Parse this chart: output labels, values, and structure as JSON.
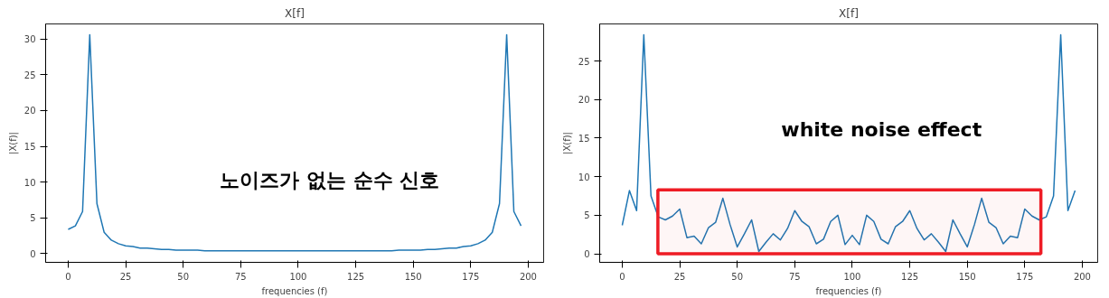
{
  "chart_data": [
    {
      "type": "line",
      "title": "X[f]",
      "xlabel": "frequencies (f)",
      "ylabel": "|X(f)|",
      "x": [
        0,
        3.125,
        6.25,
        9.375,
        12.5,
        15.625,
        18.75,
        21.875,
        25,
        28.125,
        31.25,
        34.375,
        37.5,
        40.625,
        43.75,
        46.875,
        50,
        53.125,
        56.25,
        59.375,
        62.5,
        65.625,
        68.75,
        71.875,
        75,
        78.125,
        81.25,
        84.375,
        87.5,
        90.625,
        93.75,
        96.875,
        100,
        103.125,
        106.25,
        109.375,
        112.5,
        115.625,
        118.75,
        121.875,
        125,
        128.125,
        131.25,
        134.375,
        137.5,
        140.625,
        143.75,
        146.875,
        150,
        153.125,
        156.25,
        159.375,
        162.5,
        165.625,
        168.75,
        171.875,
        175,
        178.125,
        181.25,
        184.375,
        187.5,
        190.625,
        193.75,
        196.875
      ],
      "series": [
        {
          "color": "#1f77b4",
          "values": [
            3.4,
            3.9,
            5.9,
            30.6,
            7.0,
            3.0,
            1.9,
            1.4,
            1.1,
            1.0,
            0.8,
            0.8,
            0.7,
            0.6,
            0.6,
            0.5,
            0.5,
            0.5,
            0.5,
            0.4,
            0.4,
            0.4,
            0.4,
            0.4,
            0.4,
            0.4,
            0.4,
            0.4,
            0.4,
            0.4,
            0.4,
            0.4,
            0.4,
            0.4,
            0.4,
            0.4,
            0.4,
            0.4,
            0.4,
            0.4,
            0.4,
            0.4,
            0.4,
            0.4,
            0.4,
            0.4,
            0.5,
            0.5,
            0.5,
            0.5,
            0.6,
            0.6,
            0.7,
            0.8,
            0.8,
            1.0,
            1.1,
            1.4,
            1.9,
            3.0,
            7.0,
            30.6,
            5.9,
            3.9
          ]
        }
      ],
      "xlim": [
        -9.8,
        206.7
      ],
      "xticks": [
        0,
        25,
        50,
        75,
        100,
        125,
        150,
        175,
        200
      ],
      "ylim": [
        -1.2,
        32.1
      ],
      "yticks": [
        0,
        5,
        10,
        15,
        20,
        25,
        30
      ],
      "annotations": [
        "노이즈가 없는 순수 신호"
      ]
    },
    {
      "type": "line",
      "title": "X[f]",
      "xlabel": "frequencies (f)",
      "ylabel": "|X(f)|",
      "x": [
        0,
        3.125,
        6.25,
        9.375,
        12.5,
        15.625,
        18.75,
        21.875,
        25,
        28.125,
        31.25,
        34.375,
        37.5,
        40.625,
        43.75,
        46.875,
        50,
        53.125,
        56.25,
        59.375,
        62.5,
        65.625,
        68.75,
        71.875,
        75,
        78.125,
        81.25,
        84.375,
        87.5,
        90.625,
        93.75,
        96.875,
        100,
        103.125,
        106.25,
        109.375,
        112.5,
        115.625,
        118.75,
        121.875,
        125,
        128.125,
        131.25,
        134.375,
        137.5,
        140.625,
        143.75,
        146.875,
        150,
        153.125,
        156.25,
        159.375,
        162.5,
        165.625,
        168.75,
        171.875,
        175,
        178.125,
        181.25,
        184.375,
        187.5,
        190.625,
        193.75,
        196.875
      ],
      "series": [
        {
          "color": "#1f77b4",
          "values": [
            3.7,
            8.2,
            5.6,
            28.4,
            7.5,
            4.8,
            4.4,
            4.9,
            5.8,
            2.1,
            2.3,
            1.3,
            3.4,
            4.1,
            7.2,
            3.8,
            0.9,
            2.6,
            4.4,
            0.3,
            1.5,
            2.6,
            1.8,
            3.3,
            5.6,
            4.2,
            3.5,
            1.3,
            1.9,
            4.2,
            5.0,
            1.2,
            2.4,
            1.2,
            5.0,
            4.2,
            1.9,
            1.3,
            3.5,
            4.2,
            5.6,
            3.3,
            1.8,
            2.6,
            1.5,
            0.3,
            4.4,
            2.6,
            0.9,
            3.8,
            7.2,
            4.1,
            3.4,
            1.3,
            2.3,
            2.1,
            5.8,
            4.9,
            4.4,
            4.8,
            7.5,
            28.4,
            5.6,
            8.2
          ]
        }
      ],
      "xlim": [
        -9.8,
        206.7
      ],
      "xticks": [
        0,
        25,
        50,
        75,
        100,
        125,
        150,
        175,
        200
      ],
      "ylim": [
        -1.1,
        29.8
      ],
      "yticks": [
        0,
        5,
        10,
        15,
        20,
        25
      ],
      "bands": [
        {
          "axis": "x",
          "from": 15.5,
          "to": 182,
          "color": "#ee1c25"
        }
      ],
      "annotations": [
        "white noise effect"
      ]
    }
  ]
}
